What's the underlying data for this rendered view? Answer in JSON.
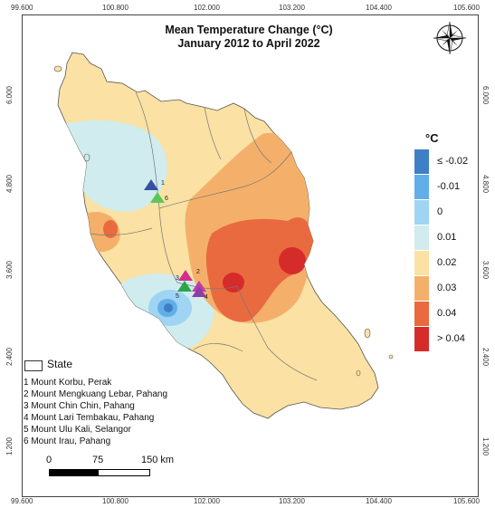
{
  "title_line1": "Mean Temperature Change (°C)",
  "title_line2": "January 2012 to April 2022",
  "axes": {
    "top_ticks": [
      "99.600",
      "100.800",
      "102.000",
      "103.200",
      "104.400",
      "105.600"
    ],
    "bottom_ticks": [
      "99.600",
      "100.800",
      "102.000",
      "103.200",
      "104.400",
      "105.600"
    ],
    "left_ticks": [
      "6.000",
      "4.800",
      "3.600",
      "2.400",
      "1.200"
    ],
    "right_ticks": [
      "6.000",
      "4.800",
      "3.600",
      "2.400",
      "1.200"
    ]
  },
  "legend": {
    "unit": "°C",
    "classes": [
      {
        "label": "≤ -0.02",
        "color": "#3f7fc4"
      },
      {
        "label": "-0.01",
        "color": "#62aee8"
      },
      {
        "label": "0",
        "color": "#9fd4f2"
      },
      {
        "label": "0.01",
        "color": "#d0ecee"
      },
      {
        "label": "0.02",
        "color": "#fbe1a3"
      },
      {
        "label": "0.03",
        "color": "#f4b06a"
      },
      {
        "label": "0.04",
        "color": "#e96a3f"
      },
      {
        "label": "> 0.04",
        "color": "#d62b2b"
      }
    ]
  },
  "state_legend": {
    "label": "State"
  },
  "sites": [
    {
      "number": "1",
      "label": "1  Mount Korbu, Perak",
      "color": "#3a4fa3"
    },
    {
      "number": "2",
      "label": "2  Mount Mengkuang Lebar, Pahang",
      "color": "#d42d8c"
    },
    {
      "number": "3",
      "label": "3  Mount Chin Chin, Pahang",
      "color": "#c13aa6"
    },
    {
      "number": "4",
      "label": "4  Mount Lari Tembakau, Pahang",
      "color": "#8a3ea8"
    },
    {
      "number": "5",
      "label": "5  Mount Ulu Kali, Selangor",
      "color": "#2aa64a"
    },
    {
      "number": "6",
      "label": "6  Mount Irau, Pahang",
      "color": "#5cc65a"
    }
  ],
  "scale_bar": {
    "labels": [
      "0",
      "75",
      "150 km"
    ]
  },
  "north_arrow": "compass-rose"
}
